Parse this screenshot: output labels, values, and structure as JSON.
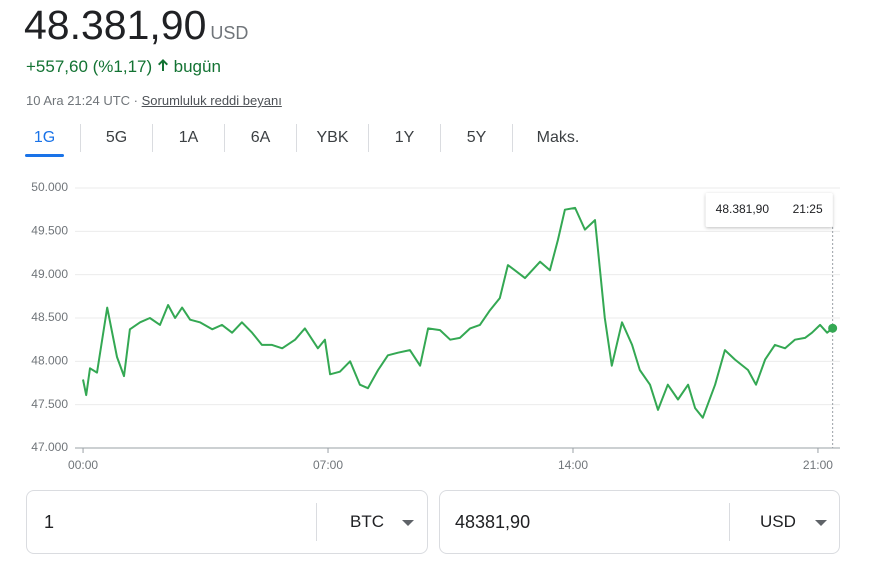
{
  "header": {
    "price": "48.381,90",
    "currency": "USD",
    "change": "+557,60 (%1,17)",
    "period": "bugün",
    "timestamp": "10 Ara 21:24 UTC",
    "disclaimer": "Sorumluluk reddi beyanı"
  },
  "tabs": [
    "1G",
    "5G",
    "1A",
    "6A",
    "YBK",
    "1Y",
    "5Y",
    "Maks."
  ],
  "chart_data": {
    "type": "line",
    "color": "#34a853",
    "x": [
      0,
      0.09,
      0.2,
      0.4,
      0.69,
      0.97,
      1.17,
      1.34,
      1.63,
      1.91,
      2.2,
      2.43,
      2.63,
      2.83,
      3.06,
      3.34,
      3.69,
      3.97,
      4.26,
      4.54,
      4.83,
      5.11,
      5.4,
      5.69,
      6.06,
      6.34,
      6.71,
      6.91,
      7.06,
      7.34,
      7.63,
      7.91,
      8.14,
      8.43,
      8.71,
      9.0,
      9.34,
      9.63,
      9.86,
      10.2,
      10.49,
      10.77,
      11.06,
      11.34,
      11.63,
      11.91,
      12.14,
      12.34,
      12.63,
      13.06,
      13.34,
      13.57,
      13.77,
      14.06,
      14.34,
      14.63,
      14.91,
      15.11,
      15.4,
      15.69,
      15.91,
      16.2,
      16.43,
      16.71,
      17.0,
      17.29,
      17.49,
      17.71,
      18.06,
      18.34,
      18.63,
      19.0,
      19.23,
      19.49,
      19.77,
      20.06,
      20.34,
      20.63,
      20.83,
      21.06,
      21.26,
      21.42
    ],
    "values": [
      47790,
      47610,
      47920,
      47870,
      48620,
      48050,
      47830,
      48370,
      48450,
      48500,
      48420,
      48650,
      48500,
      48620,
      48480,
      48450,
      48370,
      48420,
      48330,
      48450,
      48330,
      48190,
      48190,
      48150,
      48250,
      48380,
      48150,
      48250,
      47850,
      47880,
      48000,
      47730,
      47690,
      47900,
      48070,
      48100,
      48130,
      47950,
      48380,
      48360,
      48250,
      48270,
      48380,
      48420,
      48590,
      48730,
      49110,
      49050,
      48960,
      49150,
      49050,
      49400,
      49750,
      49770,
      49520,
      49630,
      48500,
      47950,
      48450,
      48190,
      47900,
      47730,
      47440,
      47730,
      47560,
      47730,
      47460,
      47350,
      47730,
      48130,
      48020,
      47900,
      47730,
      48020,
      48190,
      48150,
      48250,
      48270,
      48330,
      48420,
      48330,
      48381.9
    ],
    "xlim": [
      -0.23,
      21.63
    ],
    "xticks": [
      {
        "value": 0,
        "label": "00:00"
      },
      {
        "value": 7,
        "label": "07:00"
      },
      {
        "value": 14,
        "label": "14:00"
      },
      {
        "value": 21,
        "label": "21:00"
      }
    ],
    "ylim": [
      47000,
      50000
    ],
    "yticks": [
      {
        "value": 47000,
        "label": "47.000"
      },
      {
        "value": 47500,
        "label": "47.500"
      },
      {
        "value": 48000,
        "label": "48.000"
      },
      {
        "value": 48500,
        "label": "48.500"
      },
      {
        "value": 49000,
        "label": "49.000"
      },
      {
        "value": 49500,
        "label": "49.500"
      },
      {
        "value": 50000,
        "label": "50.000"
      }
    ],
    "grid": true,
    "tooltip": {
      "value": "48.381,90",
      "time": "21:25"
    }
  },
  "converter": {
    "from_amount": "1",
    "from_unit": "BTC",
    "to_amount": "48381,90",
    "to_unit": "USD"
  }
}
